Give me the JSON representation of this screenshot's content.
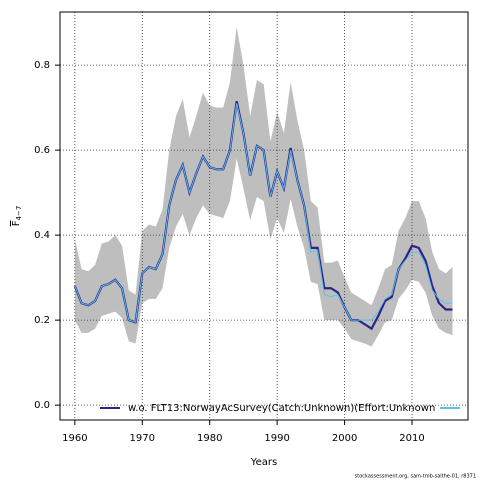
{
  "chart_data": {
    "type": "line",
    "ylabel": "F",
    "ylabel_sub": "4−7",
    "xlabel": "Years",
    "footnote": "stockassessment.org, sam-tmb-saithe-01, r8371",
    "x": [
      1960,
      1961,
      1962,
      1963,
      1964,
      1965,
      1966,
      1967,
      1968,
      1969,
      1970,
      1971,
      1972,
      1973,
      1974,
      1975,
      1976,
      1977,
      1978,
      1979,
      1980,
      1981,
      1982,
      1983,
      1984,
      1985,
      1986,
      1987,
      1988,
      1989,
      1990,
      1991,
      1992,
      1993,
      1994,
      1995,
      1996,
      1997,
      1998,
      1999,
      2000,
      2001,
      2002,
      2003,
      2004,
      2005,
      2006,
      2007,
      2008,
      2009,
      2010,
      2011,
      2012,
      2013,
      2014,
      2015,
      2016
    ],
    "band": {
      "color": "#bebebe",
      "upper": [
        0.39,
        0.32,
        0.315,
        0.33,
        0.38,
        0.385,
        0.4,
        0.375,
        0.27,
        0.26,
        0.41,
        0.425,
        0.42,
        0.46,
        0.6,
        0.68,
        0.72,
        0.63,
        0.68,
        0.735,
        0.705,
        0.7,
        0.7,
        0.76,
        0.89,
        0.8,
        0.68,
        0.765,
        0.755,
        0.62,
        0.69,
        0.64,
        0.76,
        0.67,
        0.6,
        0.48,
        0.465,
        0.335,
        0.335,
        0.34,
        0.3,
        0.265,
        0.255,
        0.245,
        0.235,
        0.275,
        0.32,
        0.33,
        0.41,
        0.44,
        0.48,
        0.48,
        0.44,
        0.36,
        0.32,
        0.31,
        0.325
      ],
      "lower": [
        0.2,
        0.17,
        0.17,
        0.18,
        0.21,
        0.215,
        0.22,
        0.205,
        0.15,
        0.145,
        0.24,
        0.25,
        0.25,
        0.275,
        0.37,
        0.42,
        0.45,
        0.4,
        0.44,
        0.47,
        0.45,
        0.445,
        0.44,
        0.48,
        0.58,
        0.51,
        0.435,
        0.49,
        0.48,
        0.39,
        0.44,
        0.405,
        0.485,
        0.42,
        0.37,
        0.29,
        0.285,
        0.2,
        0.2,
        0.2,
        0.18,
        0.155,
        0.15,
        0.145,
        0.138,
        0.165,
        0.195,
        0.2,
        0.25,
        0.27,
        0.295,
        0.29,
        0.265,
        0.21,
        0.18,
        0.17,
        0.165
      ]
    },
    "series": [
      {
        "name": "w.o. FLT13:NorwayAcSurvey(Catch:Unknown)(Effort:Unknown",
        "color": "#2b2485",
        "values": [
          0.28,
          0.24,
          0.235,
          0.245,
          0.28,
          0.285,
          0.295,
          0.275,
          0.2,
          0.195,
          0.31,
          0.325,
          0.32,
          0.355,
          0.47,
          0.53,
          0.565,
          0.5,
          0.545,
          0.585,
          0.56,
          0.555,
          0.555,
          0.6,
          0.715,
          0.64,
          0.54,
          0.61,
          0.6,
          0.49,
          0.55,
          0.51,
          0.605,
          0.53,
          0.47,
          0.37,
          0.37,
          0.275,
          0.275,
          0.265,
          0.23,
          0.2,
          0.2,
          0.19,
          0.18,
          0.21,
          0.245,
          0.255,
          0.32,
          0.345,
          0.375,
          0.37,
          0.34,
          0.28,
          0.24,
          0.225,
          0.225
        ]
      },
      {
        "color": "#5bc0eb",
        "values": [
          0.28,
          0.24,
          0.235,
          0.245,
          0.28,
          0.285,
          0.295,
          0.275,
          0.2,
          0.195,
          0.31,
          0.325,
          0.32,
          0.355,
          0.47,
          0.53,
          0.565,
          0.5,
          0.545,
          0.585,
          0.56,
          0.555,
          0.555,
          0.6,
          0.71,
          0.64,
          0.54,
          0.61,
          0.6,
          0.49,
          0.55,
          0.51,
          0.6,
          0.53,
          0.47,
          0.36,
          0.365,
          0.26,
          0.255,
          0.26,
          0.23,
          0.2,
          0.2,
          0.2,
          0.2,
          0.22,
          0.25,
          0.26,
          0.32,
          0.34,
          0.36,
          0.36,
          0.33,
          0.27,
          0.25,
          0.24,
          0.24
        ]
      }
    ],
    "xlim": [
      1957.8,
      2018.3
    ],
    "xticks": [
      1960,
      1970,
      1980,
      1990,
      2000,
      2010
    ],
    "ylim": [
      -0.035,
      0.925
    ],
    "yticks": [
      {
        "value": 0,
        "label": "0.0"
      },
      0.2,
      0.4,
      0.6,
      0.8
    ],
    "grid": true
  }
}
